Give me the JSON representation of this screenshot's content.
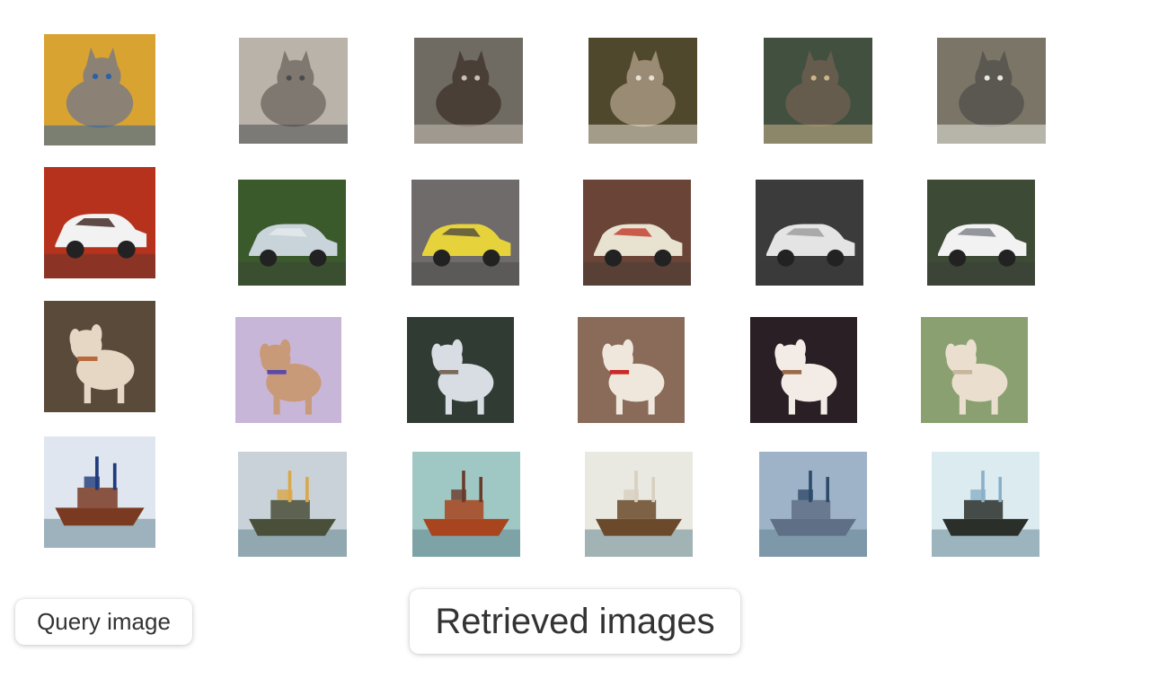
{
  "labels": {
    "query": "Query image",
    "retrieved": "Retrieved images"
  },
  "rows": [
    {
      "category": "cat",
      "query": {
        "subject": "cat",
        "bg": "#d9a332",
        "fg": "#8b8175",
        "accent": "#2b62a6"
      },
      "results": [
        {
          "subject": "cat",
          "bg": "#b9b3aa",
          "fg": "#7e7870",
          "accent": "#4b4b4b"
        },
        {
          "subject": "cat",
          "bg": "#6f6b63",
          "fg": "#4a3f37",
          "accent": "#c8c0b5"
        },
        {
          "subject": "cat",
          "bg": "#50482d",
          "fg": "#9a8b74",
          "accent": "#e7e2d6"
        },
        {
          "subject": "cat",
          "bg": "#425040",
          "fg": "#655c4d",
          "accent": "#cbb58a"
        },
        {
          "subject": "cat",
          "bg": "#7a7566",
          "fg": "#5b5751",
          "accent": "#e9e9e2"
        }
      ]
    },
    {
      "category": "car",
      "query": {
        "subject": "car",
        "bg": "#b7321c",
        "fg": "#f2f2f2",
        "accent": "#3a1f1a"
      },
      "results": [
        {
          "subject": "car",
          "bg": "#3b5a2c",
          "fg": "#c8d3da",
          "accent": "#e6ecef"
        },
        {
          "subject": "car",
          "bg": "#6f6b6a",
          "fg": "#e6d33b",
          "accent": "#4f4a40"
        },
        {
          "subject": "car",
          "bg": "#6a4436",
          "fg": "#e8e2d0",
          "accent": "#c23a2a"
        },
        {
          "subject": "car",
          "bg": "#3b3b3b",
          "fg": "#e4e4e4",
          "accent": "#9a9a9a"
        },
        {
          "subject": "car",
          "bg": "#3d4a35",
          "fg": "#f2f2f2",
          "accent": "#7a7f86"
        }
      ]
    },
    {
      "category": "dog",
      "query": {
        "subject": "dog",
        "bg": "#5a4a3a",
        "fg": "#e6d7c5",
        "accent": "#b86a3a"
      },
      "results": [
        {
          "subject": "dog",
          "bg": "#c8b6d8",
          "fg": "#c99a78",
          "accent": "#5a4aa8"
        },
        {
          "subject": "dog",
          "bg": "#2f3b33",
          "fg": "#d7dde3",
          "accent": "#7a6a5a"
        },
        {
          "subject": "dog",
          "bg": "#8a6a58",
          "fg": "#efe7dc",
          "accent": "#c92a2a"
        },
        {
          "subject": "dog",
          "bg": "#2a1f24",
          "fg": "#f3ece6",
          "accent": "#9a6a4a"
        },
        {
          "subject": "dog",
          "bg": "#8aa070",
          "fg": "#eadfcf",
          "accent": "#c7b59e"
        }
      ]
    },
    {
      "category": "ship",
      "query": {
        "subject": "ship",
        "bg": "#dfe6ef",
        "fg": "#7a3a22",
        "accent": "#1f3b7a"
      },
      "results": [
        {
          "subject": "ship",
          "bg": "#c9d2d8",
          "fg": "#4a4f3a",
          "accent": "#d9a84a"
        },
        {
          "subject": "ship",
          "bg": "#9fc8c4",
          "fg": "#a8441e",
          "accent": "#6a3a2a"
        },
        {
          "subject": "ship",
          "bg": "#e9e9e1",
          "fg": "#6a4a2a",
          "accent": "#d8d0c0"
        },
        {
          "subject": "ship",
          "bg": "#9fb3c8",
          "fg": "#5f6f86",
          "accent": "#2e4a6a"
        },
        {
          "subject": "ship",
          "bg": "#dcebf0",
          "fg": "#2a2f2a",
          "accent": "#8ab0c8"
        }
      ]
    }
  ]
}
